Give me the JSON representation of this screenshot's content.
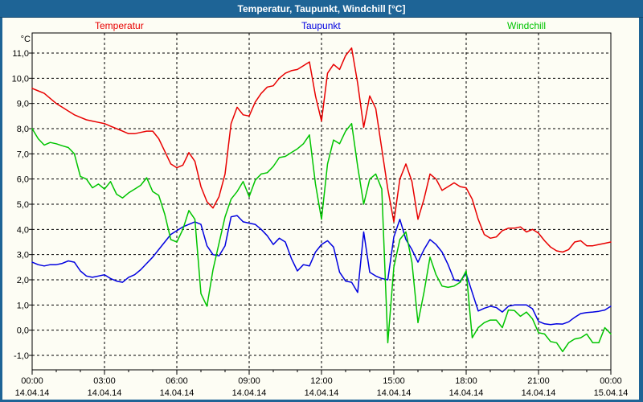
{
  "window": {
    "title": "Temperatur, Taupunkt, Windchill [°C]"
  },
  "colors": {
    "titlebar_bg": "#1e6496",
    "window_border": "#1e6496",
    "chart_background": "#fdfdf4",
    "grid": "#000000",
    "frame": "#000000",
    "temperatur": "#e80000",
    "taupunkt": "#0000e0",
    "windchill": "#00c400"
  },
  "axes": {
    "y_unit_label": "°C",
    "y_ticks": [
      {
        "value": 11,
        "label": "11,0"
      },
      {
        "value": 10,
        "label": "10,0"
      },
      {
        "value": 9,
        "label": "9,0"
      },
      {
        "value": 8,
        "label": "8,0"
      },
      {
        "value": 7,
        "label": "7,0"
      },
      {
        "value": 6,
        "label": "6,0"
      },
      {
        "value": 5,
        "label": "5,0"
      },
      {
        "value": 4,
        "label": "4,0"
      },
      {
        "value": 3,
        "label": "3,0"
      },
      {
        "value": 2,
        "label": "2,0"
      },
      {
        "value": 1,
        "label": "1,0"
      },
      {
        "value": 0,
        "label": "0,0"
      },
      {
        "value": -1,
        "label": "-1,0"
      }
    ],
    "x_ticks": [
      {
        "hour": 0,
        "time": "00:00",
        "date": "14.04.14"
      },
      {
        "hour": 3,
        "time": "03:00",
        "date": "14.04.14"
      },
      {
        "hour": 6,
        "time": "06:00",
        "date": "14.04.14"
      },
      {
        "hour": 9,
        "time": "09:00",
        "date": "14.04.14"
      },
      {
        "hour": 12,
        "time": "12:00",
        "date": "14.04.14"
      },
      {
        "hour": 15,
        "time": "15:00",
        "date": "14.04.14"
      },
      {
        "hour": 18,
        "time": "18:00",
        "date": "14.04.14"
      },
      {
        "hour": 21,
        "time": "21:00",
        "date": "14.04.14"
      },
      {
        "hour": 24,
        "time": "00:00",
        "date": "15.04.14"
      }
    ],
    "x_minor_tick_every_hours": 1
  },
  "chart_data": {
    "type": "line",
    "title": "Temperatur, Taupunkt, Windchill [°C]",
    "xlabel": "",
    "ylabel": "°C",
    "grid": "dashed",
    "legend_position": "top",
    "x_start_hour": 0,
    "x_step_hours": 0.25,
    "x_range_hours": [
      0,
      24
    ],
    "y_range": [
      -1.6,
      11.8
    ],
    "series": [
      {
        "name": "Temperatur",
        "color": "#e80000",
        "values": [
          9.6,
          9.5,
          9.4,
          9.2,
          9.0,
          8.85,
          8.7,
          8.55,
          8.45,
          8.35,
          8.3,
          8.25,
          8.2,
          8.1,
          8.0,
          7.9,
          7.8,
          7.8,
          7.85,
          7.9,
          7.9,
          7.6,
          7.1,
          6.6,
          6.45,
          6.55,
          7.05,
          6.7,
          5.7,
          5.1,
          4.85,
          5.3,
          6.2,
          8.2,
          8.85,
          8.55,
          8.5,
          9.05,
          9.4,
          9.65,
          9.7,
          10.0,
          10.2,
          10.3,
          10.35,
          10.5,
          10.65,
          9.3,
          8.3,
          10.2,
          10.55,
          10.35,
          10.9,
          11.2,
          9.8,
          8.05,
          9.3,
          8.8,
          7.2,
          5.6,
          4.3,
          6.0,
          6.6,
          5.9,
          4.4,
          5.2,
          6.2,
          6.0,
          5.55,
          5.7,
          5.85,
          5.7,
          5.65,
          5.2,
          4.4,
          3.8,
          3.65,
          3.7,
          3.95,
          4.05,
          4.05,
          4.1,
          3.9,
          4.0,
          3.85,
          3.55,
          3.3,
          3.15,
          3.1,
          3.2,
          3.5,
          3.55,
          3.35,
          3.35,
          3.4,
          3.45,
          3.5
        ]
      },
      {
        "name": "Taupunkt",
        "color": "#0000e0",
        "values": [
          2.7,
          2.6,
          2.55,
          2.6,
          2.6,
          2.65,
          2.75,
          2.7,
          2.35,
          2.15,
          2.1,
          2.15,
          2.2,
          2.05,
          1.95,
          1.9,
          2.1,
          2.2,
          2.4,
          2.65,
          2.9,
          3.2,
          3.5,
          3.8,
          3.95,
          4.1,
          4.2,
          4.3,
          4.2,
          3.35,
          3.0,
          2.95,
          3.35,
          4.5,
          4.55,
          4.3,
          4.25,
          4.2,
          4.0,
          3.75,
          3.4,
          3.65,
          3.5,
          2.85,
          2.35,
          2.6,
          2.55,
          3.1,
          3.4,
          3.55,
          3.3,
          2.3,
          1.95,
          1.9,
          1.5,
          3.9,
          2.3,
          2.15,
          2.05,
          2.0,
          3.7,
          4.4,
          3.6,
          3.2,
          2.7,
          3.2,
          3.6,
          3.4,
          3.1,
          2.6,
          2.0,
          1.95,
          2.25,
          1.5,
          0.76,
          0.87,
          0.95,
          0.9,
          0.72,
          0.95,
          1.0,
          1.0,
          1.0,
          0.85,
          0.35,
          0.25,
          0.22,
          0.25,
          0.24,
          0.33,
          0.51,
          0.66,
          0.7,
          0.72,
          0.75,
          0.8,
          0.95
        ]
      },
      {
        "name": "Windchill",
        "color": "#00c400",
        "values": [
          8.0,
          7.6,
          7.35,
          7.45,
          7.4,
          7.32,
          7.25,
          7.0,
          6.1,
          6.0,
          5.65,
          5.8,
          5.6,
          5.9,
          5.4,
          5.25,
          5.45,
          5.6,
          5.75,
          6.05,
          5.5,
          5.35,
          4.6,
          3.6,
          3.5,
          4.0,
          4.75,
          4.4,
          1.45,
          0.95,
          2.4,
          3.45,
          4.5,
          5.2,
          5.5,
          5.9,
          5.3,
          5.95,
          6.2,
          6.25,
          6.5,
          6.85,
          6.9,
          7.05,
          7.2,
          7.4,
          7.75,
          5.8,
          4.4,
          6.6,
          7.55,
          7.4,
          7.9,
          8.2,
          6.5,
          5.0,
          6.0,
          6.2,
          5.6,
          -0.5,
          2.5,
          3.6,
          3.9,
          2.7,
          0.3,
          1.5,
          2.9,
          2.2,
          1.75,
          1.7,
          1.75,
          1.9,
          2.35,
          -0.3,
          0.1,
          0.3,
          0.4,
          0.4,
          0.1,
          0.8,
          0.78,
          0.55,
          0.72,
          0.45,
          -0.1,
          -0.15,
          -0.45,
          -0.5,
          -0.85,
          -0.5,
          -0.35,
          -0.3,
          -0.15,
          -0.5,
          -0.5,
          0.1,
          -0.15
        ]
      }
    ]
  }
}
